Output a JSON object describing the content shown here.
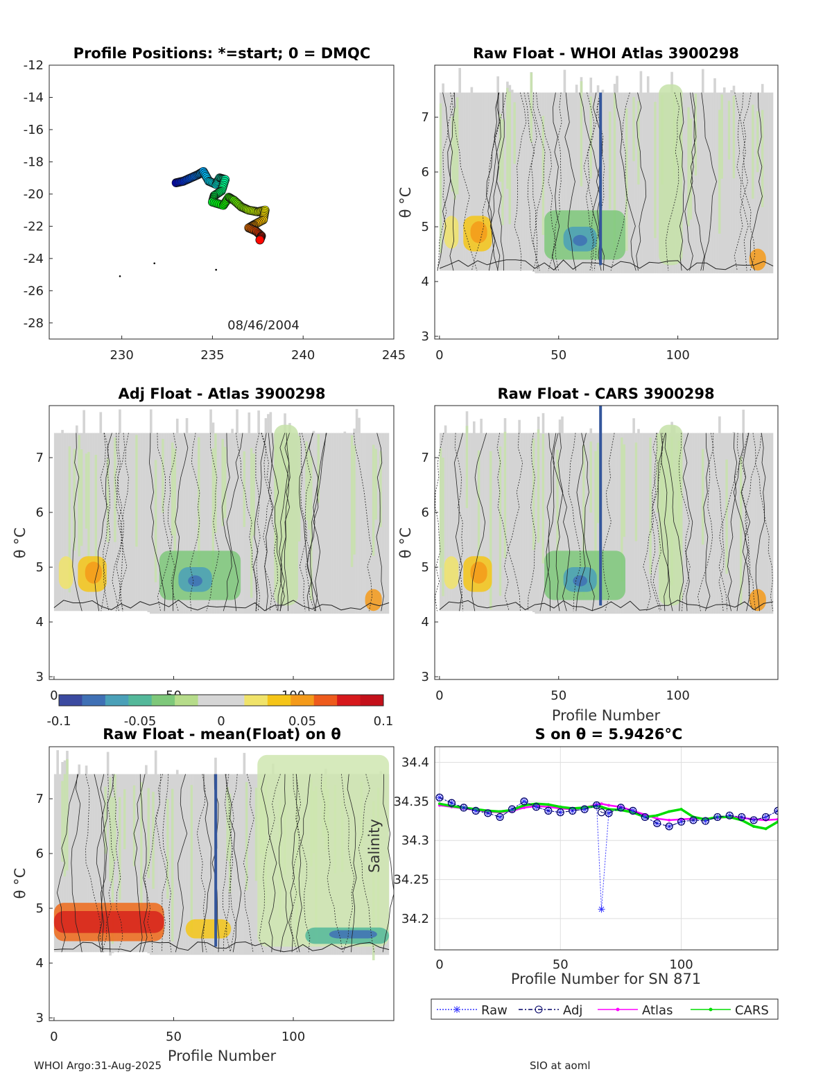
{
  "footer": {
    "left": "WHOI Argo:31-Aug-2025",
    "right": "SIO at aoml"
  },
  "colorbar": {
    "ticks": [
      "-0.1",
      "-0.05",
      "0",
      "0.05",
      "0.1"
    ],
    "min": -0.1,
    "max": 0.1,
    "colors": [
      "#3b4aa0",
      "#3f70b5",
      "#4aa0b8",
      "#54b89a",
      "#7ec87a",
      "#b6dc8a",
      "#d6d6d6",
      "#d6d6d6",
      "#f0e36a",
      "#f5c518",
      "#f49a1a",
      "#ee5b1c",
      "#d7191c",
      "#c4101a"
    ]
  },
  "map": {
    "title": "Profile Positions: *=start; 0 = DMQC",
    "date_label": "08/46/2004",
    "xlim": [
      226,
      245
    ],
    "ylim": [
      -29,
      -12
    ],
    "xticks": [
      "230",
      "235",
      "240",
      "245"
    ],
    "yticks": [
      "-12",
      "-14",
      "-16",
      "-18",
      "-20",
      "-22",
      "-24",
      "-26",
      "-28"
    ],
    "track": [
      [
        233.0,
        -19.3
      ],
      [
        233.4,
        -19.2
      ],
      [
        233.8,
        -19.0
      ],
      [
        234.2,
        -18.8
      ],
      [
        234.5,
        -18.6
      ],
      [
        234.8,
        -19.2
      ],
      [
        235.2,
        -19.4
      ],
      [
        235.4,
        -19.0
      ],
      [
        235.7,
        -19.1
      ],
      [
        235.5,
        -19.8
      ],
      [
        235.1,
        -20.1
      ],
      [
        235.0,
        -20.5
      ],
      [
        235.6,
        -20.7
      ],
      [
        235.9,
        -20.2
      ],
      [
        236.2,
        -20.4
      ],
      [
        236.6,
        -20.8
      ],
      [
        237.0,
        -21.0
      ],
      [
        237.5,
        -21.1
      ],
      [
        237.9,
        -21.0
      ],
      [
        237.8,
        -21.6
      ],
      [
        237.3,
        -21.9
      ],
      [
        237.0,
        -22.1
      ],
      [
        237.4,
        -22.3
      ],
      [
        237.7,
        -22.6
      ],
      [
        237.6,
        -22.9
      ]
    ],
    "scatter_points": [
      [
        229.9,
        -25.1
      ],
      [
        231.8,
        -24.3
      ],
      [
        235.2,
        -24.7
      ]
    ]
  },
  "panels": {
    "p1": {
      "title": "Raw Float - WHOI Atlas  3900298",
      "ylabel": "θ °C",
      "xlabel": "",
      "xticks": [
        "0",
        "50",
        "100"
      ],
      "yticks": [
        "3",
        "4",
        "5",
        "6",
        "7"
      ]
    },
    "p2": {
      "title": "Adj Float - Atlas  3900298",
      "ylabel": "θ °C",
      "xlabel": "",
      "xticks": [
        "0",
        "50",
        "100"
      ],
      "yticks": [
        "3",
        "4",
        "5",
        "6",
        "7"
      ]
    },
    "p3": {
      "title": "Raw Float - CARS  3900298",
      "ylabel": "θ °C",
      "xlabel": "Profile Number",
      "xticks": [
        "0",
        "50",
        "100"
      ],
      "yticks": [
        "3",
        "4",
        "5",
        "6",
        "7"
      ]
    },
    "p4": {
      "title": "Raw Float - mean(Float) on θ",
      "ylabel": "θ °C",
      "xlabel": "Profile Number",
      "xticks": [
        "0",
        "50",
        "100"
      ],
      "yticks": [
        "3",
        "4",
        "5",
        "6",
        "7"
      ]
    }
  },
  "chart_data": {
    "type": "line",
    "title": "S on θ = 5.9426°C",
    "xlabel": "Profile Number for SN 871",
    "ylabel": "Salinity",
    "xlim": [
      -2,
      140
    ],
    "ylim": [
      34.16,
      34.42
    ],
    "xticks": [
      "0",
      "50",
      "100"
    ],
    "yticks": [
      "34.2",
      "34.25",
      "34.3",
      "34.35",
      "34.4"
    ],
    "x": [
      0,
      5,
      10,
      15,
      20,
      25,
      30,
      35,
      40,
      45,
      50,
      55,
      60,
      65,
      67,
      70,
      75,
      80,
      85,
      90,
      95,
      100,
      105,
      110,
      115,
      120,
      125,
      130,
      135,
      140
    ],
    "series": [
      {
        "name": "Raw",
        "color": "#3333ff",
        "values": [
          34.355,
          34.348,
          34.342,
          34.338,
          34.335,
          34.33,
          34.34,
          34.35,
          34.343,
          34.338,
          34.336,
          34.338,
          34.34,
          34.345,
          34.212,
          34.335,
          34.342,
          34.338,
          34.33,
          34.322,
          34.318,
          34.324,
          34.326,
          34.325,
          34.33,
          34.332,
          34.33,
          34.326,
          34.33,
          34.338
        ]
      },
      {
        "name": "Adj",
        "color": "#000066",
        "values": [
          34.355,
          34.348,
          34.342,
          34.338,
          34.335,
          34.33,
          34.34,
          34.35,
          34.343,
          34.338,
          34.336,
          34.338,
          34.34,
          34.345,
          34.336,
          34.335,
          34.342,
          34.338,
          34.33,
          34.322,
          34.318,
          34.324,
          34.326,
          34.325,
          34.33,
          34.332,
          34.33,
          34.326,
          34.33,
          34.338
        ]
      },
      {
        "name": "Atlas",
        "color": "#ff00ff",
        "values": [
          34.345,
          34.343,
          34.341,
          34.339,
          34.337,
          34.336,
          34.338,
          34.342,
          34.344,
          34.343,
          34.341,
          34.34,
          34.342,
          34.346,
          34.347,
          34.345,
          34.343,
          34.338,
          34.333,
          34.328,
          34.326,
          34.327,
          34.328,
          34.328,
          34.329,
          34.33,
          34.329,
          34.327,
          34.326,
          34.327
        ]
      },
      {
        "name": "CARS",
        "color": "#00dd00",
        "values": [
          34.347,
          34.344,
          34.342,
          34.34,
          34.338,
          34.337,
          34.339,
          34.345,
          34.347,
          34.346,
          34.343,
          34.341,
          34.342,
          34.344,
          34.343,
          34.34,
          34.339,
          34.336,
          34.33,
          34.332,
          34.337,
          34.34,
          34.33,
          34.327,
          34.33,
          34.33,
          34.326,
          34.318,
          34.315,
          34.324
        ]
      }
    ]
  }
}
